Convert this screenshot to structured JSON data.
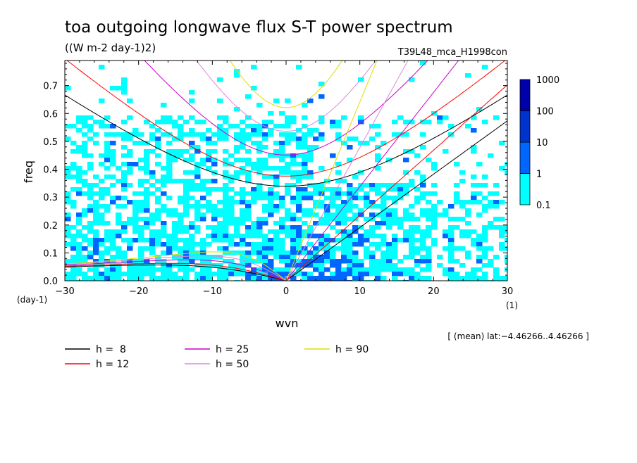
{
  "chart_data": {
    "type": "heatmap",
    "title": "toa outgoing longwave flux S-T power spectrum",
    "subtitle": "((W m-2 day-1)2)",
    "run_label": "T39L48_mca_H1998con",
    "xlabel": "wvn",
    "ylabel": "freq",
    "x_unit": "(1)",
    "y_unit": "(day-1)",
    "xlim": [
      -30,
      30
    ],
    "ylim": [
      0,
      0.79
    ],
    "x_ticks": [
      -30,
      -20,
      -10,
      0,
      10,
      20,
      30
    ],
    "x_tick_labels": [
      "−30",
      "−20",
      "−10",
      "0",
      "10",
      "20",
      "30"
    ],
    "y_ticks": [
      0,
      0.1,
      0.2,
      0.3,
      0.4,
      0.5,
      0.6,
      0.7
    ],
    "y_tick_labels": [
      "0.0",
      "0.1",
      "0.2",
      "0.3",
      "0.4",
      "0.5",
      "0.6",
      "0.7"
    ],
    "colorbar": {
      "levels": [
        "0.1",
        "1",
        "10",
        "100",
        "1000"
      ],
      "colors": [
        "#00ffff",
        "#0066ff",
        "#0033cc",
        "#0000aa",
        "#4400aa"
      ]
    },
    "region_note": "[ (mean) lat:−4.46266..4.46266 ]",
    "dispersion_curves": [
      {
        "name": "h =  8",
        "h": 8,
        "color": "#000000"
      },
      {
        "name": "h = 12",
        "h": 12,
        "color": "#ff0000"
      },
      {
        "name": "h = 25",
        "h": 25,
        "color": "#cc00cc"
      },
      {
        "name": "h = 50",
        "h": 50,
        "color": "#dd88dd"
      },
      {
        "name": "h = 90",
        "h": 90,
        "color": "#dddd00"
      }
    ],
    "grid": false,
    "legend_position": "bottom-left"
  }
}
